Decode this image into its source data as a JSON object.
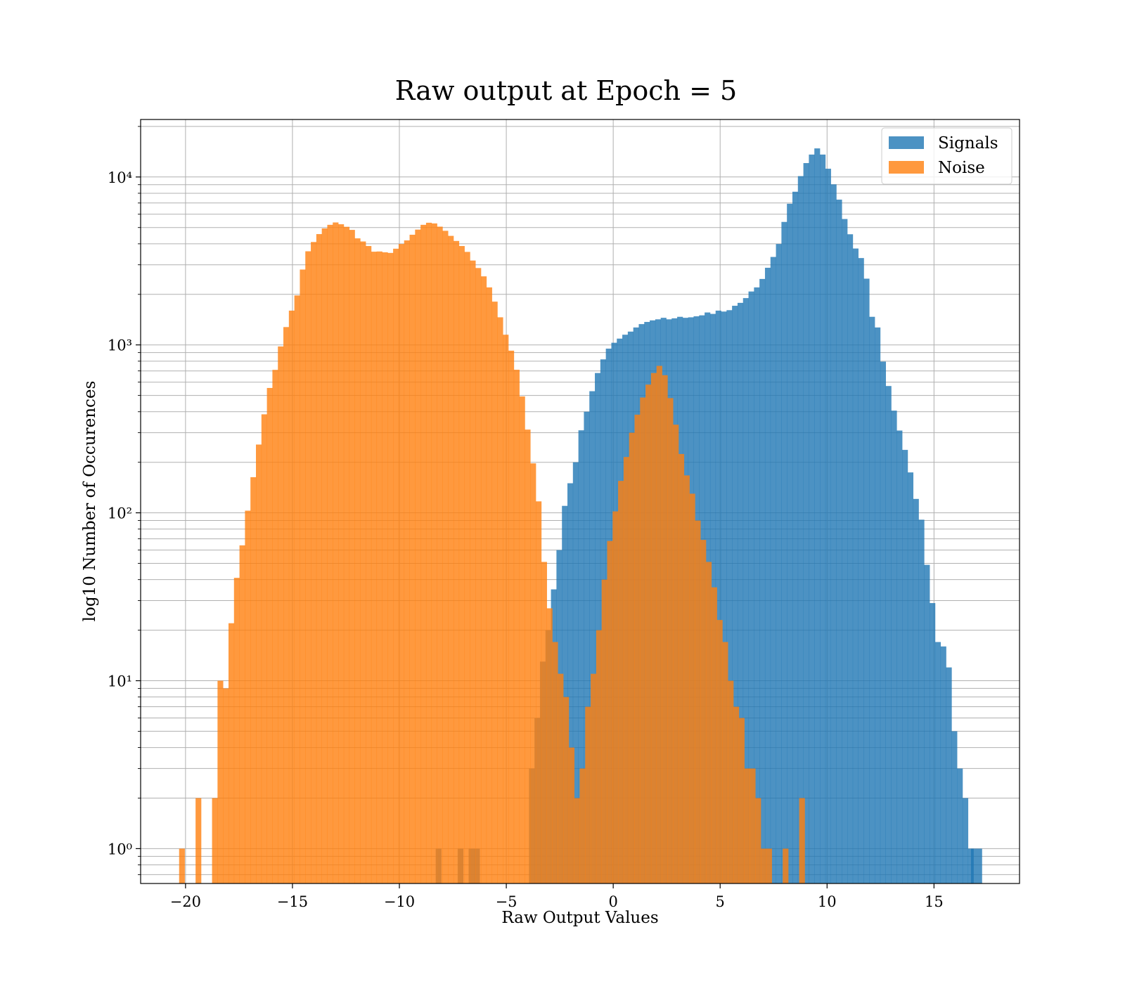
{
  "chart_data": {
    "type": "bar",
    "title": "Raw output at Epoch = 5",
    "xlabel": "Raw Output Values",
    "ylabel": "log10 Number of Occurences",
    "y_scale": "log",
    "xlim": [
      -22.1,
      19.0
    ],
    "ylim": [
      0.62,
      22000
    ],
    "grid": true,
    "legend_position": "top-right",
    "x_ticks": [
      -20,
      -15,
      -10,
      -5,
      0,
      5,
      10,
      15
    ],
    "x_tick_labels": [
      "−20",
      "−15",
      "−10",
      "−5",
      "0",
      "5",
      "10",
      "15"
    ],
    "y_ticks": [
      1,
      10,
      100,
      1000,
      10000
    ],
    "y_tick_labels": [
      "10⁰",
      "10¹",
      "10²",
      "10³",
      "10⁴"
    ],
    "series": [
      {
        "name": "Signals",
        "color": "#1f77b4",
        "opacity": 0.8,
        "bin_start": -8.3,
        "bin_width": 0.2566,
        "values": [
          1,
          0,
          0,
          0,
          1,
          0,
          1,
          1,
          0,
          0,
          0,
          0,
          0,
          0,
          0,
          0,
          0,
          3,
          6,
          13,
          20,
          35,
          60,
          110,
          150,
          200,
          310,
          400,
          530,
          680,
          820,
          950,
          1030,
          1090,
          1150,
          1200,
          1270,
          1330,
          1370,
          1400,
          1420,
          1450,
          1420,
          1440,
          1470,
          1450,
          1460,
          1480,
          1500,
          1560,
          1530,
          1600,
          1580,
          1610,
          1710,
          1780,
          1900,
          2080,
          2200,
          2470,
          2880,
          3340,
          3990,
          5400,
          6930,
          8170,
          10120,
          12100,
          13600,
          14800,
          13600,
          11200,
          9040,
          7330,
          5620,
          4560,
          3750,
          3290,
          2480,
          1470,
          1270,
          795,
          569,
          406,
          309,
          237,
          174,
          121,
          91,
          49,
          29,
          17,
          16,
          12,
          5,
          3,
          2,
          1
        ],
        "overflow_bins": [
          {
            "x_start": 16.73,
            "x_end": 17.25,
            "value": 1
          }
        ]
      },
      {
        "name": "Noise",
        "color": "#ff7f0e",
        "opacity": 0.8,
        "bin_start": -20.3,
        "bin_width": 0.2566,
        "values": [
          1,
          0,
          0,
          2,
          0,
          0,
          2,
          10,
          9,
          22,
          41,
          64,
          103,
          163,
          255,
          386,
          554,
          710,
          979,
          1277,
          1600,
          1970,
          2810,
          3610,
          4100,
          4570,
          4940,
          5190,
          5360,
          5230,
          5050,
          4840,
          4310,
          4130,
          3880,
          3590,
          3600,
          3560,
          3530,
          3740,
          3990,
          4190,
          4530,
          4860,
          5190,
          5340,
          5290,
          5060,
          4780,
          4460,
          4160,
          3880,
          3580,
          3180,
          2870,
          2560,
          2200,
          1810,
          1460,
          1150,
          924,
          711,
          493,
          313,
          197,
          117,
          51,
          27,
          17,
          11,
          8,
          4,
          2,
          3,
          7,
          11,
          20,
          40,
          68,
          102,
          155,
          215,
          300,
          384,
          486,
          580,
          680,
          750,
          660,
          482,
          335,
          224,
          167,
          130,
          90,
          69,
          51,
          36,
          23,
          17,
          10,
          7,
          6,
          3,
          3,
          2,
          1,
          1,
          0,
          0,
          1,
          0,
          0,
          2,
          0,
          0
        ]
      }
    ],
    "legend": [
      {
        "label": "Signals",
        "color": "#1f77b4"
      },
      {
        "label": "Noise",
        "color": "#ff7f0e"
      }
    ]
  }
}
